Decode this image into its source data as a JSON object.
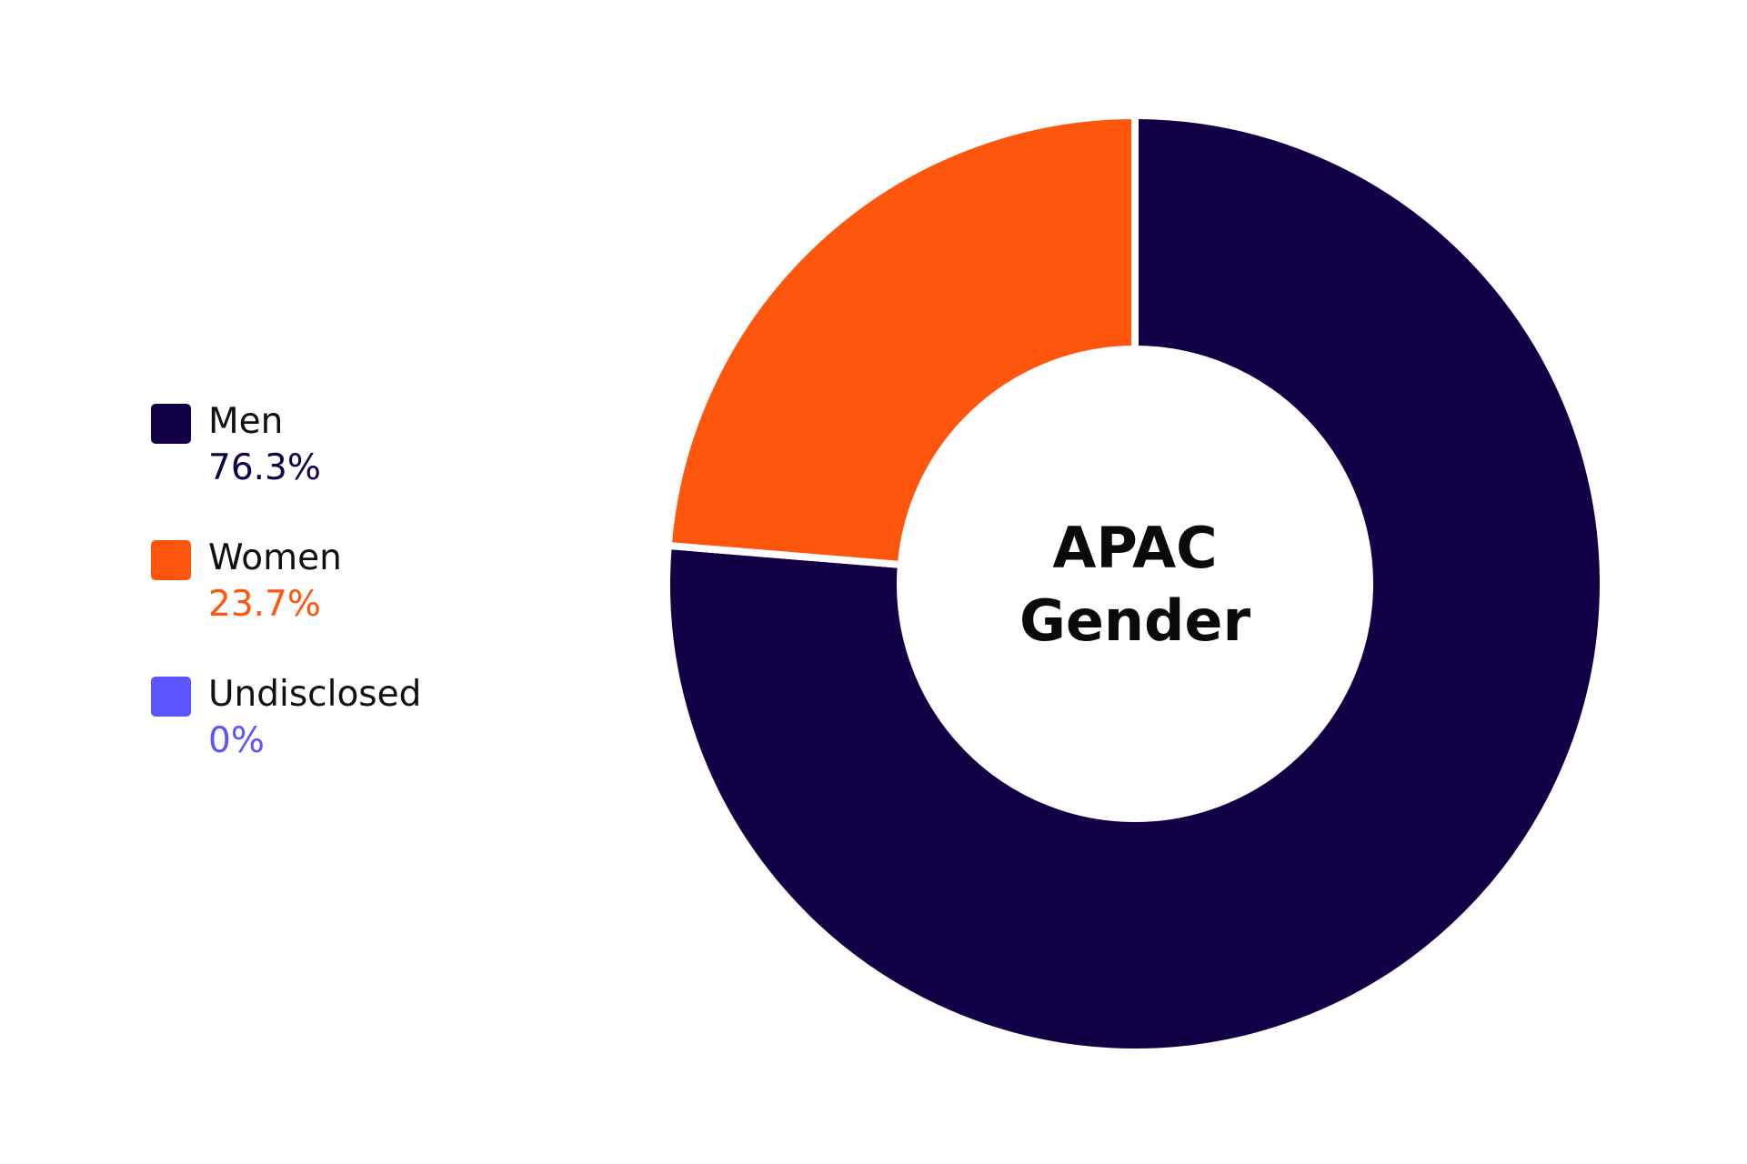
{
  "chart_data": {
    "type": "pie",
    "title": "APAC Gender",
    "title_lines": [
      "APAC",
      "Gender"
    ],
    "donut": true,
    "categories": [
      "Men",
      "Women",
      "Undisclosed"
    ],
    "values": [
      76.3,
      23.7,
      0
    ],
    "value_labels": [
      "76.3%",
      "23.7%",
      "0%"
    ],
    "colors": [
      "#120046",
      "#ff560e",
      "#5a55ff"
    ],
    "legend_position": "left"
  }
}
